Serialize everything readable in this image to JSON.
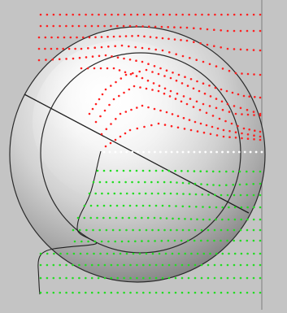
{
  "diagram": {
    "colors": {
      "background": "#c4c4c4",
      "frame_line": "#8a8a8a",
      "outline": "#2a2a2a",
      "sphere_highlight": "#ffffff",
      "sphere_mid": "#d6d6d6",
      "sphere_shadow": "#7a7a7a",
      "red_dots": "#ff2020",
      "green_dots": "#22dd22",
      "white_dots": "#ffffff"
    },
    "elements": [
      "shaded-sphere",
      "outer-circle",
      "inner-circle",
      "diagonal-line",
      "red-dotted-streamlines",
      "green-dotted-streamlines",
      "white-dotted-streamline",
      "black-flow-curve"
    ]
  }
}
